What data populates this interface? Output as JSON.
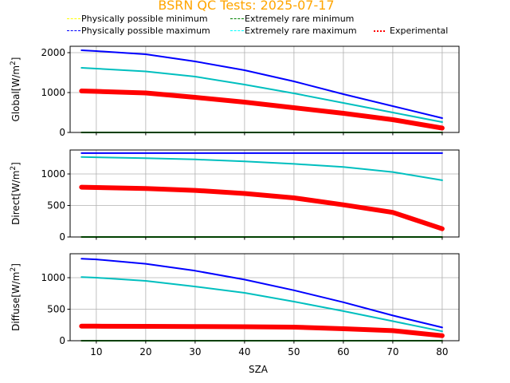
{
  "chart_data": [
    {
      "type": "line",
      "title": "BSRN QC Tests: 2025-07-17",
      "xlabel": "",
      "ylabel": "Global[W/m²]",
      "ylabel_main": "Global[W/m",
      "xlim": [
        4.7,
        83.4
      ],
      "ylim": [
        0,
        2160
      ],
      "yticks": [
        0,
        1000,
        2000
      ],
      "grid": true,
      "x": [
        7,
        10,
        20,
        30,
        40,
        50,
        60,
        70,
        80
      ],
      "series": [
        {
          "name": "Physically possible minimum",
          "color": "#ffff00",
          "values": [
            0,
            0,
            0,
            0,
            0,
            0,
            0,
            0,
            0
          ]
        },
        {
          "name": "Extremely rare minimum",
          "color": "#008000",
          "values": [
            0,
            0,
            0,
            0,
            0,
            0,
            0,
            0,
            0
          ]
        },
        {
          "name": "Physically possible maximum",
          "color": "#0000ff",
          "values": [
            2060,
            2040,
            1960,
            1780,
            1560,
            1280,
            960,
            660,
            360
          ]
        },
        {
          "name": "Extremely rare maximum",
          "color": "#00bfbf",
          "values": [
            1620,
            1600,
            1530,
            1400,
            1200,
            980,
            740,
            500,
            260
          ]
        },
        {
          "name": "Experimental",
          "color": "#ff0000",
          "values": [
            1040,
            1030,
            990,
            880,
            760,
            620,
            480,
            320,
            110
          ]
        }
      ]
    },
    {
      "type": "line",
      "ylabel": "Direct[W/m²]",
      "ylabel_main": "Direct[W/m",
      "xlim": [
        4.7,
        83.4
      ],
      "ylim": [
        0,
        1380
      ],
      "yticks": [
        0,
        500,
        1000
      ],
      "grid": true,
      "x": [
        7,
        10,
        20,
        30,
        40,
        50,
        60,
        70,
        80
      ],
      "series": [
        {
          "name": "Physically possible minimum",
          "color": "#ffff00",
          "values": [
            0,
            0,
            0,
            0,
            0,
            0,
            0,
            0,
            0
          ]
        },
        {
          "name": "Extremely rare minimum",
          "color": "#008000",
          "values": [
            0,
            0,
            0,
            0,
            0,
            0,
            0,
            0,
            0
          ]
        },
        {
          "name": "Physically possible maximum",
          "color": "#0000ff",
          "values": [
            1330,
            1330,
            1330,
            1330,
            1330,
            1330,
            1330,
            1330,
            1330
          ]
        },
        {
          "name": "Extremely rare maximum",
          "color": "#00bfbf",
          "values": [
            1270,
            1265,
            1250,
            1230,
            1200,
            1160,
            1110,
            1030,
            900
          ]
        },
        {
          "name": "Experimental",
          "color": "#ff0000",
          "values": [
            790,
            785,
            770,
            740,
            690,
            620,
            510,
            390,
            130
          ]
        }
      ]
    },
    {
      "type": "line",
      "xlabel": "SZA",
      "ylabel": "Diffuse[W/m²]",
      "ylabel_main": "Diffuse[W/m",
      "xlim": [
        4.7,
        83.4
      ],
      "ylim": [
        0,
        1380
      ],
      "yticks": [
        0,
        500,
        1000
      ],
      "xticks": [
        10,
        20,
        30,
        40,
        50,
        60,
        70,
        80
      ],
      "grid": true,
      "x": [
        7,
        10,
        20,
        30,
        40,
        50,
        60,
        70,
        80
      ],
      "series": [
        {
          "name": "Physically possible minimum",
          "color": "#ffff00",
          "values": [
            0,
            0,
            0,
            0,
            0,
            0,
            0,
            0,
            0
          ]
        },
        {
          "name": "Extremely rare minimum",
          "color": "#008000",
          "values": [
            0,
            0,
            0,
            0,
            0,
            0,
            0,
            0,
            0
          ]
        },
        {
          "name": "Physically possible maximum",
          "color": "#0000ff",
          "values": [
            1300,
            1290,
            1220,
            1110,
            970,
            800,
            610,
            400,
            210
          ]
        },
        {
          "name": "Extremely rare maximum",
          "color": "#00bfbf",
          "values": [
            1010,
            1000,
            950,
            860,
            760,
            620,
            470,
            310,
            150
          ]
        },
        {
          "name": "Experimental",
          "color": "#ff0000",
          "values": [
            230,
            230,
            228,
            225,
            222,
            215,
            190,
            160,
            80
          ]
        }
      ]
    }
  ],
  "legend": {
    "ppmin": "Physically possible minimum",
    "ppmax": "Physically possible maximum",
    "ermin": "Extremely rare minimum",
    "ermax": "Extremely rare maximum",
    "exp": "Experimental"
  },
  "sup2": "2"
}
